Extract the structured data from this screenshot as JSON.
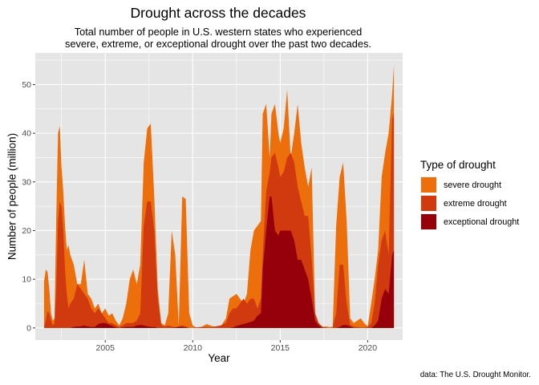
{
  "chart_data": {
    "type": "area",
    "stacked": true,
    "title": "Drought across the decades",
    "subtitle": [
      "Total number of people in U.S. western states who experienced",
      "severe, extreme, or exceptional drought over the past two decades."
    ],
    "xlabel": "Year",
    "ylabel": "Number of people (million)",
    "caption": "data: The U.S. Drought Monitor.",
    "xlim": [
      2001.0,
      2022.0
    ],
    "ylim": [
      -2.5,
      56.5
    ],
    "x_ticks": [
      2005,
      2010,
      2015,
      2020
    ],
    "x_tick_labels": [
      "2005",
      "2010",
      "2015",
      "2020"
    ],
    "y_ticks": [
      0,
      10,
      20,
      30,
      40,
      50
    ],
    "y_tick_labels": [
      "0",
      "10",
      "20",
      "30",
      "40",
      "50"
    ],
    "grid": true,
    "legend": {
      "title": "Type of drought",
      "position": "right",
      "entries": [
        {
          "label": "severe drought",
          "color": "#ec6f0c"
        },
        {
          "label": "extreme drought",
          "color": "#d1390e"
        },
        {
          "label": "exceptional drought",
          "color": "#96000b"
        }
      ]
    },
    "colors": {
      "severe": "#ec6f0c",
      "extreme": "#d1390e",
      "exceptional": "#96000b",
      "panel": "#e5e5e5",
      "grid": "#ffffff"
    },
    "note": "values are cumulative stack tops in million people: exceptional, exceptional+extreme, exceptional+extreme+severe",
    "x": [
      2001.5,
      2001.6,
      2001.7,
      2001.8,
      2001.9,
      2002.0,
      2002.1,
      2002.2,
      2002.3,
      2002.4,
      2002.5,
      2002.6,
      2002.7,
      2002.8,
      2002.9,
      2003.0,
      2003.2,
      2003.4,
      2003.6,
      2003.8,
      2004.0,
      2004.2,
      2004.4,
      2004.6,
      2004.8,
      2005.0,
      2005.2,
      2005.4,
      2005.6,
      2005.8,
      2006.0,
      2006.2,
      2006.4,
      2006.6,
      2006.8,
      2007.0,
      2007.2,
      2007.4,
      2007.6,
      2007.8,
      2008.0,
      2008.2,
      2008.4,
      2008.6,
      2008.8,
      2009.0,
      2009.2,
      2009.4,
      2009.6,
      2009.8,
      2010.0,
      2010.2,
      2010.5,
      2010.8,
      2011.0,
      2011.3,
      2011.6,
      2011.9,
      2012.1,
      2012.3,
      2012.5,
      2012.7,
      2012.9,
      2013.1,
      2013.3,
      2013.5,
      2013.7,
      2013.9,
      2014.0,
      2014.2,
      2014.4,
      2014.5,
      2014.7,
      2014.9,
      2015.0,
      2015.2,
      2015.4,
      2015.6,
      2015.8,
      2016.0,
      2016.2,
      2016.4,
      2016.6,
      2016.8,
      2017.0,
      2017.2,
      2017.4,
      2017.6,
      2017.8,
      2018.0,
      2018.2,
      2018.4,
      2018.6,
      2018.8,
      2019.0,
      2019.2,
      2019.4,
      2019.6,
      2019.8,
      2020.0,
      2020.2,
      2020.4,
      2020.6,
      2020.8,
      2021.0,
      2021.2,
      2021.4,
      2021.5
    ],
    "exceptional_top": [
      0,
      0,
      0,
      0,
      0,
      0,
      0,
      0,
      0,
      0,
      0,
      0,
      0,
      0,
      0,
      0,
      0.2,
      0.3,
      0.3,
      0.5,
      0.3,
      0.2,
      0.2,
      0.8,
      1.0,
      1.0,
      0.7,
      0.4,
      0.1,
      0,
      0.1,
      0.2,
      0.2,
      0.2,
      0.5,
      0.6,
      0.5,
      0.3,
      0.2,
      0.2,
      0,
      0,
      0,
      0,
      0,
      0.1,
      0.2,
      0.2,
      0.1,
      0,
      0,
      0,
      0,
      0,
      0,
      0,
      0,
      0,
      0,
      0.1,
      0.4,
      0.6,
      0.8,
      1.0,
      1.2,
      1.5,
      2.5,
      3.0,
      12,
      20,
      27,
      27,
      20,
      19,
      20,
      20,
      20,
      20,
      18,
      14,
      14,
      12,
      10,
      6,
      1.5,
      0.5,
      0,
      0,
      0,
      0,
      0,
      0.2,
      0.6,
      0.6,
      0.3,
      0,
      0,
      0,
      0,
      0,
      0,
      0.5,
      1.5,
      6,
      8,
      7,
      15,
      16
    ],
    "extreme_top": [
      0,
      1.5,
      3.5,
      3.0,
      1.5,
      0.5,
      1,
      8,
      22,
      26,
      25,
      20,
      12,
      7,
      4,
      5,
      6,
      9,
      8,
      7,
      6,
      4,
      3,
      4,
      3,
      2,
      1,
      1,
      0.5,
      0.2,
      0.5,
      1,
      1,
      1,
      1.5,
      3,
      21,
      26,
      26,
      20,
      6,
      0.5,
      0.3,
      0.5,
      0.3,
      0.1,
      0.3,
      0.5,
      0.3,
      0,
      0,
      0.1,
      0.2,
      0.2,
      0.1,
      0.3,
      0.5,
      1,
      3,
      4,
      4,
      5,
      6,
      5,
      6,
      6,
      4,
      6,
      15,
      28,
      32,
      35,
      36,
      33,
      31,
      32,
      35,
      36,
      34,
      29,
      26,
      23,
      23,
      14,
      3,
      1,
      0.3,
      0.1,
      0,
      0.1,
      3,
      13,
      13,
      5,
      0.6,
      0.3,
      0.2,
      0.1,
      0.1,
      0.2,
      1,
      5,
      13,
      18,
      20,
      15,
      43,
      44
    ],
    "severe_top": [
      9.5,
      12,
      11.5,
      8,
      3,
      1.5,
      2,
      23,
      40,
      41.5,
      33,
      28,
      21,
      16,
      17,
      15,
      13,
      9,
      9,
      14,
      7,
      6,
      4,
      5,
      3,
      4,
      2.5,
      3,
      1.5,
      0.5,
      2,
      5,
      10,
      12,
      9,
      13,
      34,
      41,
      42,
      27,
      8,
      1,
      0.5,
      3,
      20,
      15,
      0.5,
      27,
      26.5,
      3,
      0.5,
      0.1,
      0.2,
      0.8,
      0.5,
      0.2,
      0.3,
      2,
      6,
      6.5,
      7,
      6,
      5,
      7,
      16,
      20,
      21,
      22,
      44,
      46,
      35,
      44,
      46,
      40,
      38,
      41,
      49,
      35,
      40,
      46,
      38,
      33,
      29,
      33,
      2,
      0.3,
      0.1,
      0.3,
      0.2,
      0.2,
      21,
      31,
      34,
      22,
      2,
      1,
      1.5,
      2,
      1,
      0.3,
      5,
      10,
      16,
      31,
      36,
      40,
      48,
      54
    ]
  }
}
